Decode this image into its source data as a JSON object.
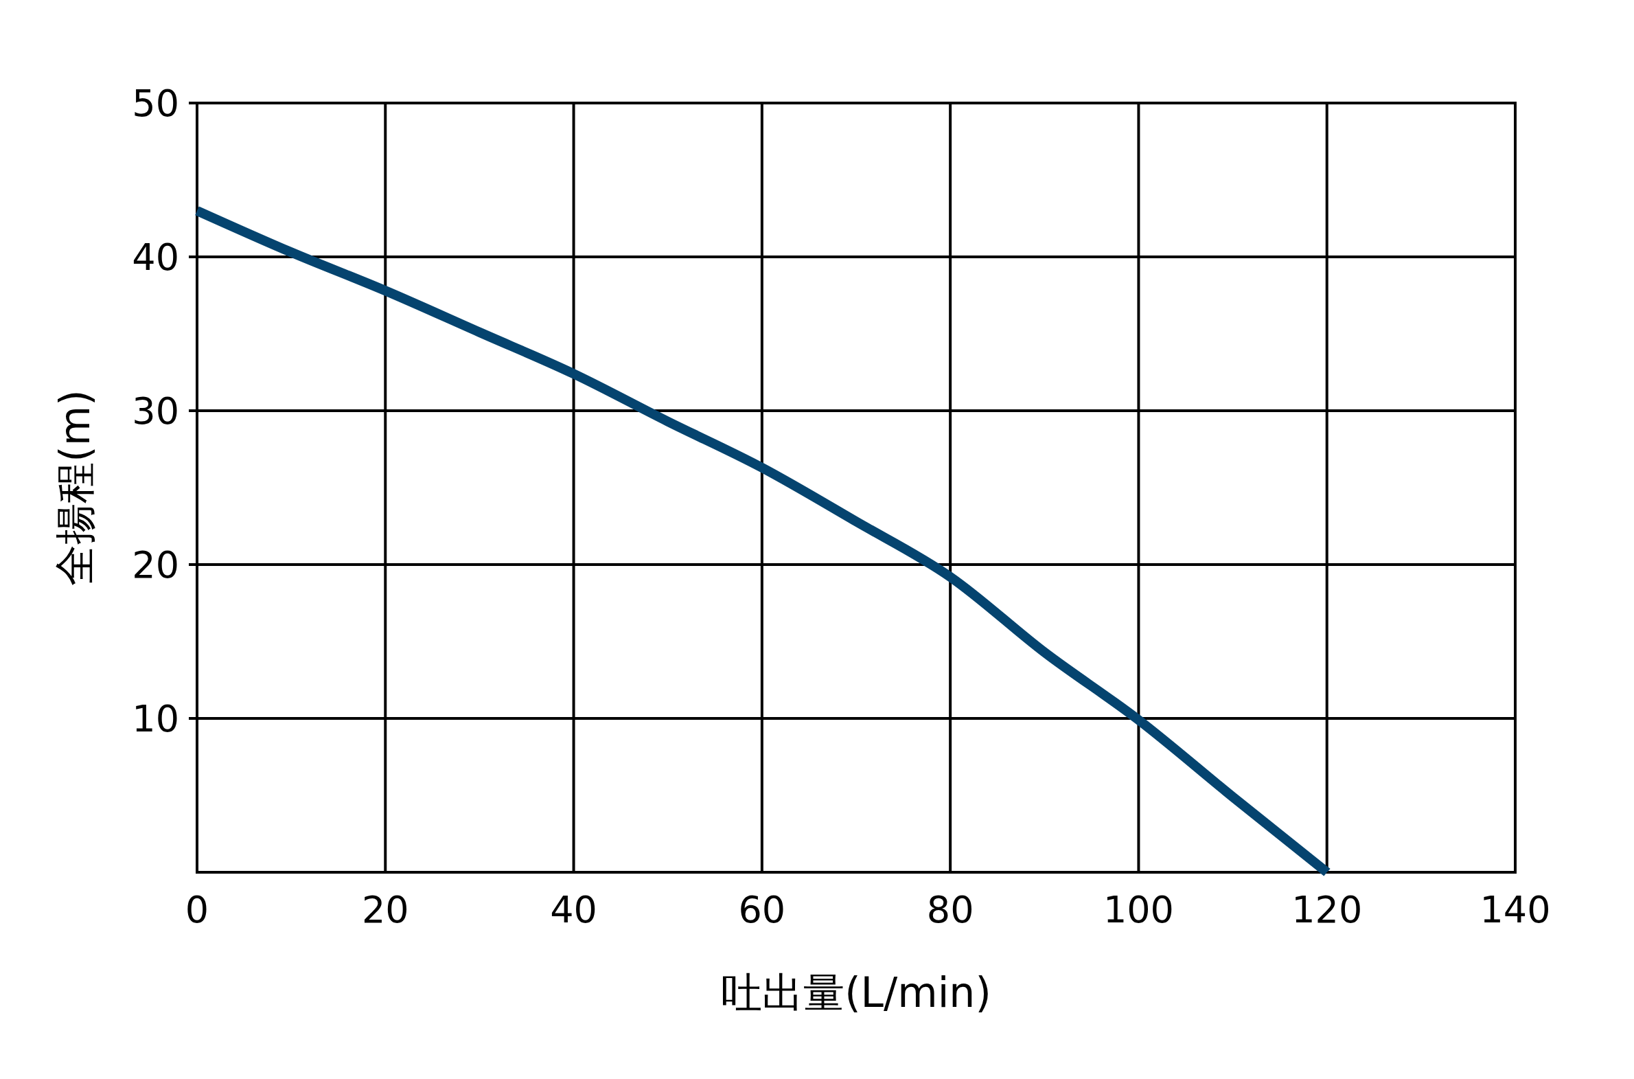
{
  "chart_data": {
    "type": "line",
    "xlabel": "吐出量(L/min)",
    "ylabel": "全揚程(m)",
    "x": [
      0,
      10,
      20,
      30,
      40,
      50,
      60,
      70,
      80,
      90,
      100,
      110,
      120
    ],
    "series": [
      {
        "color": "#05446f",
        "values": [
          43,
          40.3,
          37.8,
          35.1,
          32.4,
          29.3,
          26.3,
          22.8,
          19.2,
          14.3,
          9.9,
          4.9,
          0
        ]
      }
    ],
    "xlim": [
      0,
      140
    ],
    "ylim": [
      0,
      50
    ],
    "xticks": [
      0,
      20,
      40,
      60,
      80,
      100,
      120,
      140
    ],
    "yticks": [
      10,
      20,
      30,
      40,
      50
    ],
    "grid": true
  }
}
